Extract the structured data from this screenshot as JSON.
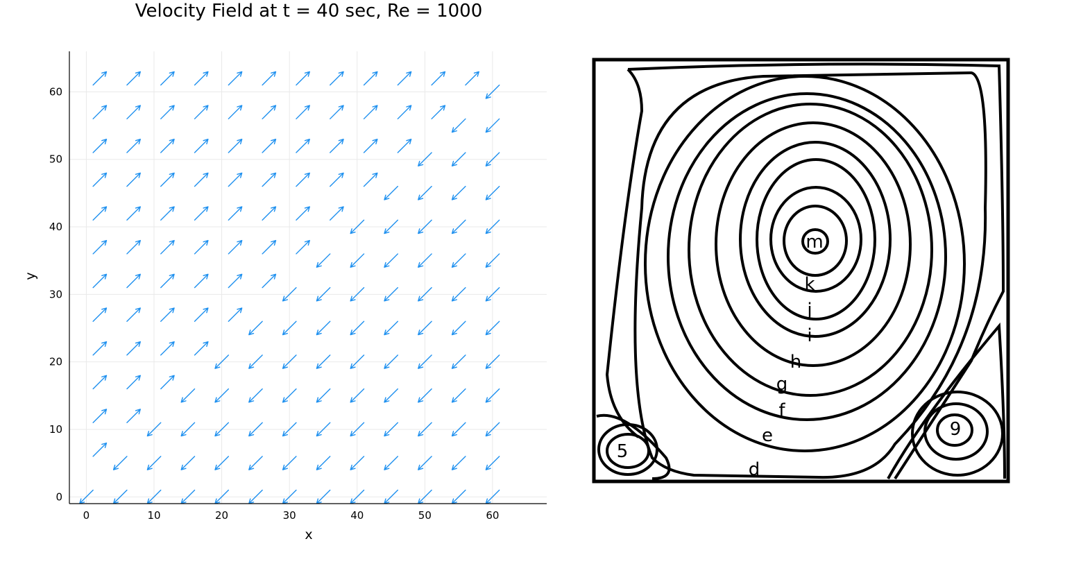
{
  "chart_data": [
    {
      "type": "quiver",
      "title": "Velocity Field at t = 40 sec, Re = 1000",
      "xlabel": "x",
      "ylabel": "y",
      "xlim": [
        -2.5,
        68
      ],
      "ylim": [
        -1,
        66
      ],
      "xticks": [
        0,
        10,
        20,
        30,
        40,
        50,
        60
      ],
      "yticks": [
        0,
        10,
        20,
        30,
        40,
        50,
        60
      ],
      "grid": true,
      "legend": "none",
      "series_color": "#1e90ef",
      "grid_spacing": 5,
      "grid_range": [
        1,
        61
      ],
      "vortex_center": [
        36,
        38
      ],
      "vortex_direction": "counterclockwise"
    },
    {
      "type": "streamline-contour",
      "description_labels": [
        "m",
        "k",
        "j",
        "i",
        "h",
        "g",
        "f",
        "e",
        "d",
        "5",
        "9"
      ],
      "primary_vortex_label": "m",
      "bottom_left_eddy_label": "5",
      "bottom_right_eddy_label": "9"
    }
  ]
}
